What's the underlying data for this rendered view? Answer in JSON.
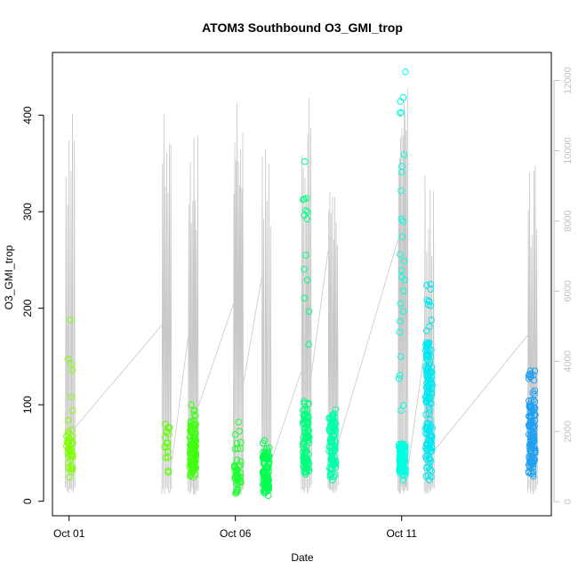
{
  "chart_data": {
    "type": "scatter",
    "title": "ATOM3 Southbound O3_GMI_trop",
    "xlabel": "Date",
    "ylabel": "O3_GMI_trop",
    "x_ticks": [
      {
        "day": 1,
        "label": "Oct 01"
      },
      {
        "day": 6,
        "label": "Oct 06"
      },
      {
        "day": 11,
        "label": "Oct 11"
      }
    ],
    "y_ticks": [
      0,
      100,
      200,
      300,
      400
    ],
    "y2_ticks": [
      0,
      2000,
      4000,
      6000,
      8000,
      10000,
      12000
    ],
    "x_range_days": [
      0.5,
      15.5
    ],
    "ylim": [
      -15,
      465
    ],
    "y2lim": [
      -400,
      12800
    ],
    "grid": false,
    "legend": "none",
    "colors": {
      "altitude_trace": "#c8c8c8",
      "axis": "#000000",
      "secondary_axis": "#c0c0c0"
    },
    "profiles": [
      {
        "day": 1.0,
        "ymin": 25,
        "ymax": 188,
        "bulk_min": 30,
        "bulk_max": 75,
        "n": 45,
        "color": "#80ff00",
        "alt_max": 11600
      },
      {
        "day": 3.9,
        "ymin": 30,
        "ymax": 80,
        "bulk_min": 40,
        "bulk_max": 78,
        "n": 16,
        "color": "#60ff00",
        "alt_max": 12000
      },
      {
        "day": 4.7,
        "ymin": 25,
        "ymax": 100,
        "bulk_min": 30,
        "bulk_max": 80,
        "n": 110,
        "color": "#40ff10",
        "alt_max": 10500
      },
      {
        "day": 6.05,
        "ymin": 8,
        "ymax": 82,
        "bulk_min": 10,
        "bulk_max": 45,
        "n": 45,
        "color": "#20ff30",
        "alt_max": 12100
      },
      {
        "day": 6.9,
        "ymin": 6,
        "ymax": 63,
        "bulk_min": 10,
        "bulk_max": 50,
        "n": 90,
        "color": "#00ff50",
        "alt_max": 10700
      },
      {
        "day": 8.1,
        "ymin": 28,
        "ymax": 352,
        "bulk_min": 30,
        "bulk_max": 95,
        "n": 110,
        "color": "#00ff80",
        "alt_max": 11800
      },
      {
        "day": 8.9,
        "ymin": 22,
        "ymax": 95,
        "bulk_min": 25,
        "bulk_max": 90,
        "n": 90,
        "color": "#00ffa8",
        "alt_max": 9500
      },
      {
        "day": 11.0,
        "ymin": 22,
        "ymax": 445,
        "bulk_min": 25,
        "bulk_max": 60,
        "n": 130,
        "color": "#00ffe0",
        "alt_max": 12000
      },
      {
        "day": 11.8,
        "ymin": 22,
        "ymax": 225,
        "bulk_min": 25,
        "bulk_max": 165,
        "n": 150,
        "color": "#00e8f0",
        "alt_max": 9600
      },
      {
        "day": 14.9,
        "ymin": 26,
        "ymax": 135,
        "bulk_min": 28,
        "bulk_max": 105,
        "n": 130,
        "color": "#20a0f0",
        "alt_max": 9700
      }
    ]
  }
}
